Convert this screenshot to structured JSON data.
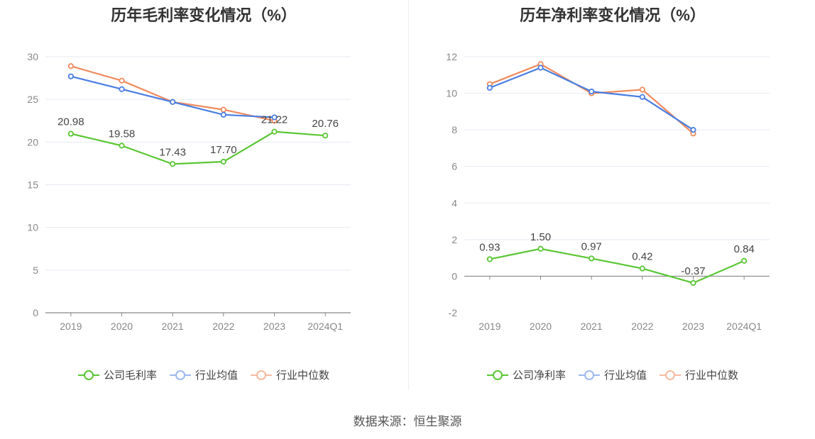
{
  "charts": [
    {
      "id": "gross",
      "title": "历年毛利率变化情况（%）",
      "legend": [
        "公司毛利率",
        "行业均值",
        "行业中位数"
      ],
      "colors": [
        "#5ac634",
        "#4a7ee2",
        "#f08a5d"
      ],
      "chart_data": {
        "type": "line",
        "title": "历年毛利率变化情况（%）",
        "categories": [
          "2019",
          "2020",
          "2021",
          "2022",
          "2023",
          "2024Q1"
        ],
        "y_ticks": [
          0,
          5,
          10,
          15,
          20,
          25,
          30
        ],
        "ylim": [
          0,
          30
        ],
        "series": [
          {
            "name": "公司毛利率",
            "values": [
              20.98,
              19.58,
              17.43,
              17.7,
              21.22,
              20.76
            ],
            "labels": [
              "20.98",
              "19.58",
              "17.43",
              "17.70",
              "21.22",
              "20.76"
            ]
          },
          {
            "name": "行业均值",
            "values": [
              27.7,
              26.2,
              24.7,
              23.2,
              22.9,
              null
            ]
          },
          {
            "name": "行业中位数",
            "values": [
              28.9,
              27.2,
              24.7,
              23.8,
              22.5,
              null
            ]
          }
        ],
        "grid": true,
        "legend_position": "bottom"
      }
    },
    {
      "id": "net",
      "title": "历年净利率变化情况（%）",
      "legend": [
        "公司净利率",
        "行业均值",
        "行业中位数"
      ],
      "colors": [
        "#5ac634",
        "#4a7ee2",
        "#f08a5d"
      ],
      "chart_data": {
        "type": "line",
        "title": "历年净利率变化情况（%）",
        "categories": [
          "2019",
          "2020",
          "2021",
          "2022",
          "2023",
          "2024Q1"
        ],
        "y_ticks": [
          -2,
          0,
          2,
          4,
          6,
          8,
          10,
          12
        ],
        "ylim": [
          -2,
          12
        ],
        "series": [
          {
            "name": "公司净利率",
            "values": [
              0.93,
              1.5,
              0.97,
              0.42,
              -0.37,
              0.84
            ],
            "labels": [
              "0.93",
              "1.50",
              "0.97",
              "0.42",
              "-0.37",
              "0.84"
            ]
          },
          {
            "name": "行业均值",
            "values": [
              10.3,
              11.4,
              10.1,
              9.8,
              8.0,
              null
            ]
          },
          {
            "name": "行业中位数",
            "values": [
              10.5,
              11.6,
              10.0,
              10.2,
              7.8,
              null
            ]
          }
        ],
        "grid": true,
        "legend_position": "bottom"
      }
    }
  ],
  "source": "数据来源：恒生聚源"
}
